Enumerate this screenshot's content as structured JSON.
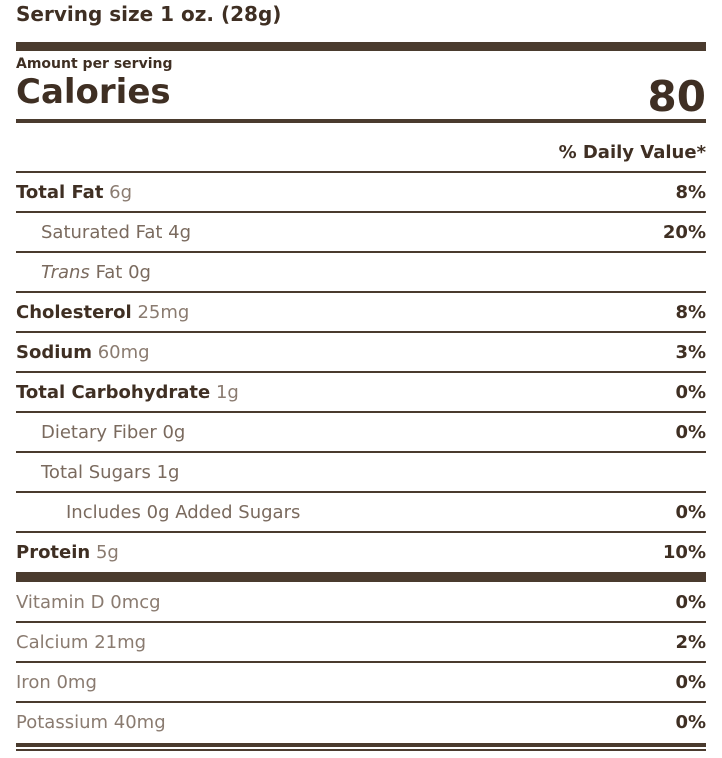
{
  "serving_size": "Serving size 1 oz. (28g)",
  "amount_per_serving": "Amount per serving",
  "calories": {
    "label": "Calories",
    "value": "80"
  },
  "daily_value_header": "% Daily Value*",
  "nutrients": [
    {
      "name": "Total Fat",
      "amount": "6g",
      "dv": "8%"
    },
    {
      "name": "Saturated Fat",
      "amount": "4g",
      "dv": "20%"
    },
    {
      "name_italic": "Trans",
      "name": "Fat",
      "amount": "0g",
      "dv": ""
    },
    {
      "name": "Cholesterol",
      "amount": "25mg",
      "dv": "8%"
    },
    {
      "name": "Sodium",
      "amount": "60mg",
      "dv": "3%"
    },
    {
      "name": "Total Carbohydrate",
      "amount": "1g",
      "dv": "0%"
    },
    {
      "name": "Dietary Fiber",
      "amount": "0g",
      "dv": "0%"
    },
    {
      "name": "Total Sugars",
      "amount": "1g",
      "dv": ""
    },
    {
      "name": "Includes 0g Added Sugars",
      "dv": "0%"
    },
    {
      "name": "Protein",
      "amount": "5g",
      "dv": "10%"
    }
  ],
  "vitamins": [
    {
      "name": "Vitamin D",
      "amount": "0mcg",
      "dv": "0%"
    },
    {
      "name": "Calcium",
      "amount": "21mg",
      "dv": "2%"
    },
    {
      "name": "Iron",
      "amount": "0mg",
      "dv": "0%"
    },
    {
      "name": "Potassium",
      "amount": "40mg",
      "dv": "0%"
    }
  ]
}
